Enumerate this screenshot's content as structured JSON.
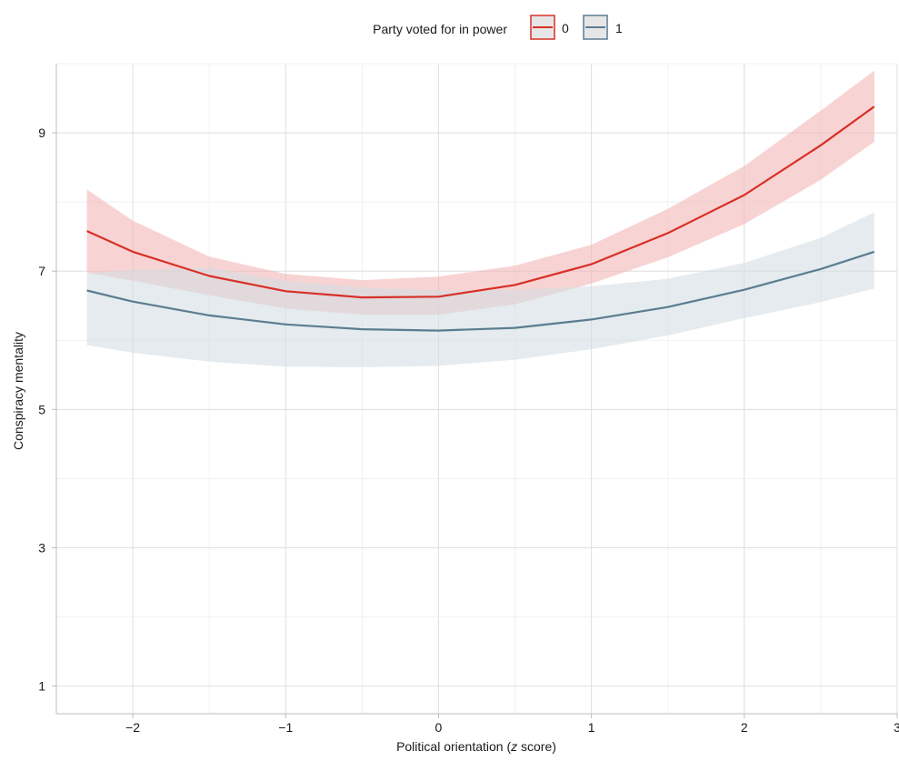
{
  "chart_data": {
    "type": "line",
    "xlabel_prefix": "Political orientation (",
    "xlabel_italic": "z",
    "xlabel_suffix": " score)",
    "ylabel": "Conspiracy mentality",
    "xlim": [
      -2.5,
      3.0
    ],
    "ylim": [
      0.6,
      10.0
    ],
    "x_ticks": [
      -2,
      -1,
      0,
      1,
      2,
      3
    ],
    "x_tick_labels": [
      "−2",
      "−1",
      "0",
      "1",
      "2",
      "3"
    ],
    "y_ticks": [
      1,
      3,
      5,
      7,
      9
    ],
    "y_tick_labels": [
      "1",
      "3",
      "5",
      "7",
      "9"
    ],
    "grid": true,
    "legend": {
      "title": "Party voted for in power",
      "placement": "top-center",
      "entries": [
        "0",
        "1"
      ]
    },
    "series": [
      {
        "name": "0",
        "color": "#d73027",
        "band_color": "#f4b6b6",
        "x": [
          -2.3,
          -2.0,
          -1.5,
          -1.0,
          -0.5,
          0.0,
          0.5,
          1.0,
          1.5,
          2.0,
          2.5,
          2.85
        ],
        "y": [
          7.58,
          7.28,
          6.93,
          6.71,
          6.62,
          6.63,
          6.8,
          7.1,
          7.55,
          8.1,
          8.82,
          9.38
        ],
        "lower": [
          6.98,
          6.86,
          6.65,
          6.46,
          6.37,
          6.37,
          6.52,
          6.82,
          7.2,
          7.68,
          8.32,
          8.87
        ],
        "upper": [
          8.18,
          7.73,
          7.21,
          6.96,
          6.87,
          6.92,
          7.08,
          7.38,
          7.9,
          8.52,
          9.32,
          9.9
        ]
      },
      {
        "name": "1",
        "color": "#5a7d90",
        "band_color": "#d3dde3",
        "x": [
          -2.3,
          -2.0,
          -1.5,
          -1.0,
          -0.5,
          0.0,
          0.5,
          1.0,
          1.5,
          2.0,
          2.5,
          2.85
        ],
        "y": [
          6.72,
          6.56,
          6.36,
          6.23,
          6.16,
          6.14,
          6.18,
          6.3,
          6.48,
          6.73,
          7.03,
          7.28
        ],
        "lower": [
          5.93,
          5.82,
          5.69,
          5.62,
          5.61,
          5.63,
          5.72,
          5.87,
          6.07,
          6.32,
          6.55,
          6.75
        ],
        "upper": [
          6.97,
          7.02,
          7.05,
          6.86,
          6.76,
          6.72,
          6.73,
          6.78,
          6.89,
          7.12,
          7.48,
          7.85
        ]
      }
    ]
  }
}
